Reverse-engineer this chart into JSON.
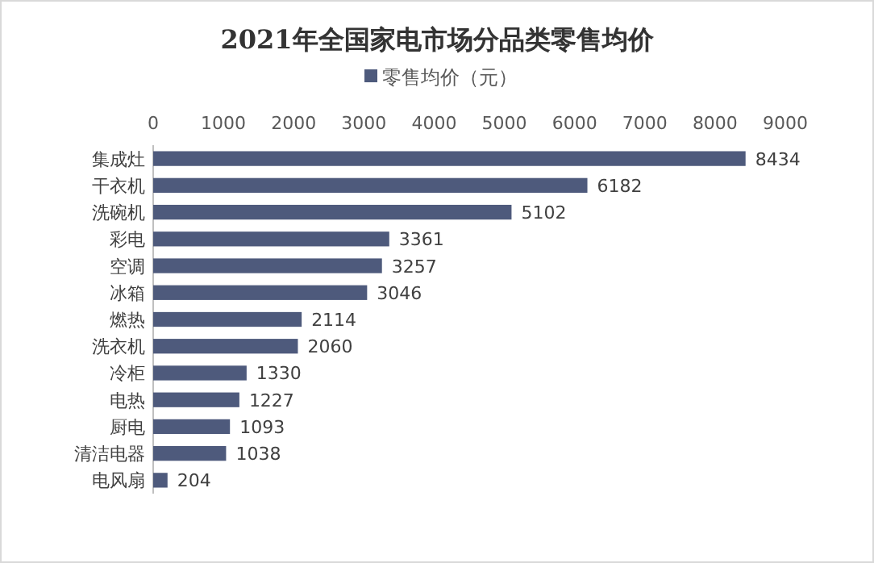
{
  "chart_data": {
    "type": "bar",
    "orientation": "horizontal",
    "title": "2021年全国家电市场分品类零售均价",
    "categories": [
      "集成灶",
      "干衣机",
      "洗碗机",
      "彩电",
      "空调",
      "冰箱",
      "燃热",
      "洗衣机",
      "冷柜",
      "电热",
      "厨电",
      "清洁电器",
      "电风扇"
    ],
    "series": [
      {
        "name": "零售均价（元）",
        "color": "#4e5a7c",
        "values": [
          8434,
          6182,
          5102,
          3361,
          3257,
          3046,
          2114,
          2060,
          1330,
          1227,
          1093,
          1038,
          204
        ]
      }
    ],
    "xlim": [
      0,
      9000
    ],
    "xticks": [
      0,
      1000,
      2000,
      3000,
      4000,
      5000,
      6000,
      7000,
      8000,
      9000
    ],
    "data_labels": true,
    "legend": "top",
    "grid": false
  }
}
